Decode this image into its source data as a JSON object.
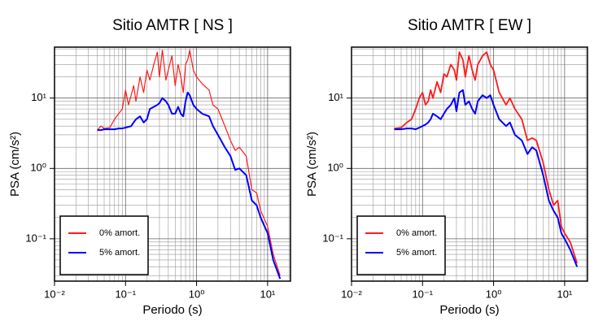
{
  "chart_data": [
    {
      "type": "line",
      "title": "Sitio AMTR [ NS ]",
      "x_label": "Periodo (s)",
      "y_label": "PSA (cm/s²)",
      "x_scale": "log",
      "y_scale": "log",
      "grid": true,
      "legend": "lower left",
      "xlim": [
        0.01,
        21
      ],
      "ylim": [
        0.025,
        53
      ],
      "xticks": [
        {
          "value": 0.01,
          "label": "10⁻²"
        },
        {
          "value": 0.1,
          "label": "10⁻¹"
        },
        {
          "value": 1,
          "label": "10⁰"
        },
        {
          "value": 10,
          "label": "10¹"
        }
      ],
      "yticks": [
        {
          "value": 0.1,
          "label": "10⁻¹"
        },
        {
          "value": 1,
          "label": "10⁰"
        },
        {
          "value": 10,
          "label": "10¹"
        }
      ],
      "x": [
        0.04,
        0.045,
        0.05,
        0.06,
        0.07,
        0.08,
        0.09,
        0.1,
        0.11,
        0.12,
        0.13,
        0.14,
        0.16,
        0.18,
        0.2,
        0.22,
        0.25,
        0.28,
        0.3,
        0.33,
        0.37,
        0.4,
        0.45,
        0.5,
        0.55,
        0.6,
        0.65,
        0.7,
        0.75,
        0.8,
        0.9,
        1.0,
        1.2,
        1.5,
        1.7,
        2.0,
        2.5,
        3.0,
        3.5,
        4,
        5,
        6,
        7,
        8,
        10,
        12,
        15
      ],
      "series": [
        {
          "name": "0% amort.",
          "color": "#ff1a1a",
          "width": 1.2,
          "values": [
            3.5,
            4,
            3.7,
            3.8,
            5,
            6,
            7,
            13,
            8,
            11,
            15,
            9,
            20,
            12,
            25,
            18,
            30,
            45,
            20,
            48,
            18,
            25,
            40,
            15,
            30,
            20,
            12,
            30,
            35,
            48,
            25,
            20,
            16,
            13,
            8,
            7,
            4,
            2.5,
            1.8,
            2,
            1.5,
            0.5,
            0.45,
            0.25,
            0.15,
            0.06,
            0.03
          ]
        },
        {
          "name": "5% amort.",
          "color": "#0000ff",
          "width": 2,
          "values": [
            3.5,
            3.5,
            3.6,
            3.6,
            3.6,
            3.7,
            3.7,
            3.8,
            3.9,
            4,
            4.5,
            5,
            5.5,
            4.5,
            5,
            7,
            7.5,
            8,
            8.5,
            10,
            9,
            8,
            6,
            6,
            7.5,
            6,
            5.5,
            9,
            12,
            11,
            8,
            7,
            6,
            5.5,
            4,
            3,
            2,
            1.5,
            0.95,
            1,
            0.8,
            0.35,
            0.3,
            0.2,
            0.12,
            0.05,
            0.027
          ]
        }
      ]
    },
    {
      "type": "line",
      "title": "Sitio AMTR [ EW ]",
      "x_label": "Periodo (s)",
      "y_label": "PSA (cm/s²)",
      "x_scale": "log",
      "y_scale": "log",
      "grid": true,
      "legend": "lower left",
      "xlim": [
        0.01,
        21
      ],
      "ylim": [
        0.025,
        53
      ],
      "xticks": [
        {
          "value": 0.01,
          "label": "10⁻²"
        },
        {
          "value": 0.1,
          "label": "10⁻¹"
        },
        {
          "value": 1,
          "label": "10⁰"
        },
        {
          "value": 10,
          "label": "10¹"
        }
      ],
      "yticks": [
        {
          "value": 0.1,
          "label": "10⁻¹"
        },
        {
          "value": 1,
          "label": "10⁰"
        },
        {
          "value": 10,
          "label": "10¹"
        }
      ],
      "x": [
        0.04,
        0.05,
        0.06,
        0.07,
        0.08,
        0.09,
        0.1,
        0.11,
        0.12,
        0.13,
        0.14,
        0.16,
        0.18,
        0.2,
        0.22,
        0.25,
        0.28,
        0.3,
        0.33,
        0.37,
        0.4,
        0.45,
        0.5,
        0.55,
        0.6,
        0.7,
        0.8,
        0.9,
        1.0,
        1.2,
        1.5,
        1.7,
        2.0,
        2.5,
        3.0,
        3.5,
        4,
        5,
        6,
        7,
        8,
        9,
        10,
        12,
        15
      ],
      "series": [
        {
          "name": "0% amort.",
          "color": "#ff1a1a",
          "width": 1.8,
          "values": [
            3.7,
            3.8,
            4.5,
            5,
            7,
            10,
            12,
            8,
            9,
            13,
            10,
            17,
            12,
            22,
            20,
            30,
            25,
            18,
            45,
            35,
            20,
            40,
            25,
            18,
            30,
            40,
            45,
            30,
            25,
            12,
            8,
            10,
            7,
            5,
            2.5,
            2.7,
            2.5,
            1.2,
            0.5,
            0.3,
            0.35,
            0.15,
            0.12,
            0.09,
            0.045
          ]
        },
        {
          "name": "5% amort.",
          "color": "#0000ff",
          "width": 2,
          "values": [
            3.6,
            3.6,
            3.7,
            3.7,
            3.6,
            3.8,
            4,
            4.2,
            4.5,
            5,
            6,
            5.5,
            5,
            6,
            7,
            8,
            10,
            6.5,
            12,
            13,
            8,
            9,
            7,
            6,
            9,
            11,
            10,
            11,
            8,
            5,
            4,
            4.5,
            3,
            2.5,
            1.6,
            2,
            1.8,
            0.8,
            0.35,
            0.25,
            0.2,
            0.12,
            0.1,
            0.07,
            0.04
          ]
        }
      ]
    }
  ]
}
